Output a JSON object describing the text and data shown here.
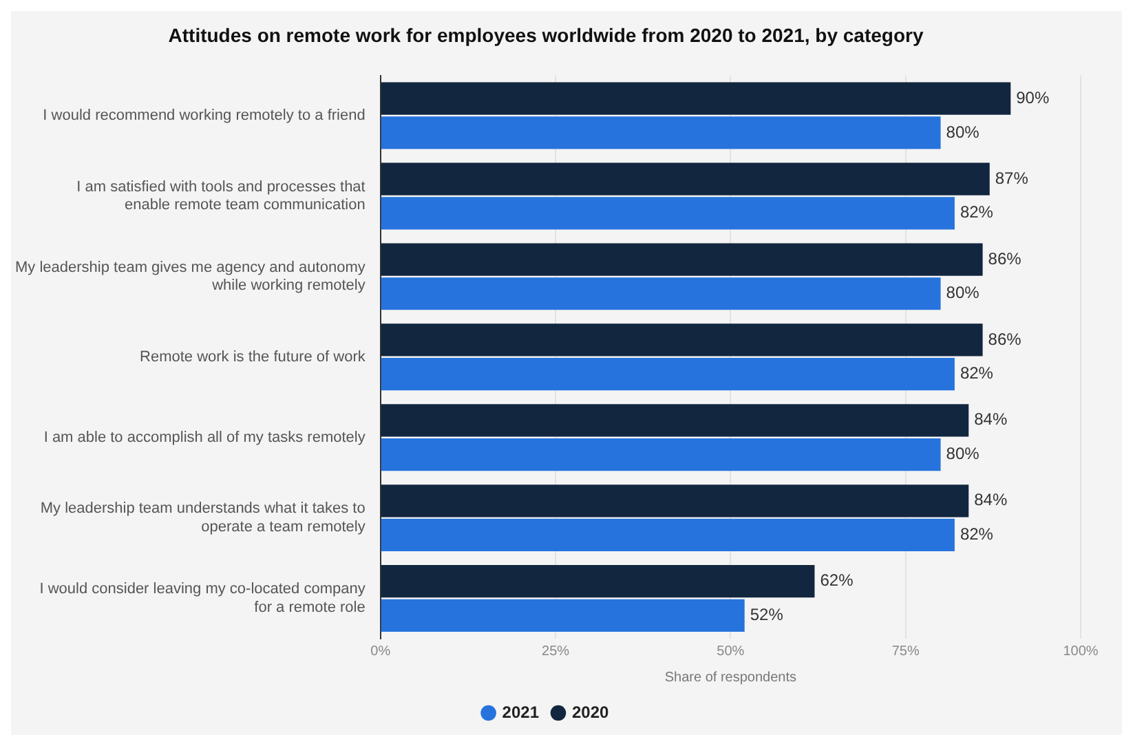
{
  "chart_data": {
    "type": "bar",
    "orientation": "horizontal",
    "title": "Attitudes on remote work for employees worldwide from 2020 to 2021, by category",
    "xlabel": "Share of respondents",
    "categories": [
      "I would recommend working remotely to a friend",
      "I am satisfied with tools and processes that enable remote team communication",
      "My leadership team gives me agency and autonomy while working remotely",
      "Remote work is the future of work",
      "I am able to accomplish all of my tasks remotely",
      "My leadership team understands what it takes to operate a team remotely",
      "I would consider leaving my co-located company for a remote role"
    ],
    "series": [
      {
        "name": "2020",
        "color": "#12263f",
        "values": [
          90,
          87,
          86,
          86,
          84,
          84,
          62
        ],
        "value_labels": [
          "90%",
          "87%",
          "86%",
          "86%",
          "84%",
          "84%",
          "62%"
        ]
      },
      {
        "name": "2021",
        "color": "#2673dd",
        "values": [
          80,
          82,
          80,
          82,
          80,
          82,
          52
        ],
        "value_labels": [
          "80%",
          "82%",
          "80%",
          "82%",
          "80%",
          "82%",
          "52%"
        ]
      }
    ],
    "xlim": [
      0,
      100
    ],
    "xticks": [
      {
        "value": 0,
        "label": "0%"
      },
      {
        "value": 25,
        "label": "25%"
      },
      {
        "value": 50,
        "label": "50%"
      },
      {
        "value": 75,
        "label": "75%"
      },
      {
        "value": 100,
        "label": "100%"
      }
    ],
    "grid": "x",
    "legend": "bottom"
  }
}
